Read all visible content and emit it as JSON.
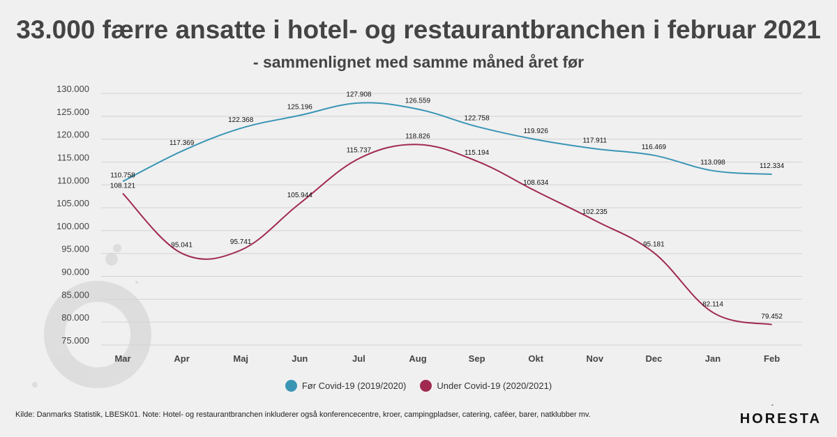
{
  "title": "33.000 færre ansatte i hotel- og restaurantbranchen i februar 2021",
  "subtitle": "- sammenlignet med samme måned året før",
  "source": "Kilde: Danmarks Statistik, LBESK01. Note: Hotel- og restaurantbranchen inkluderer også konferencecentre, kroer, campingpladser, catering, caféer, barer, natklubber mv.",
  "logo": "HORESTA",
  "chart_data": {
    "type": "line",
    "categories": [
      "Mar",
      "Apr",
      "Maj",
      "Jun",
      "Jul",
      "Aug",
      "Sep",
      "Okt",
      "Nov",
      "Dec",
      "Jan",
      "Feb"
    ],
    "series": [
      {
        "name": "Før Covid-19 (2019/2020)",
        "color": "#3a95b5",
        "values": [
          110758,
          117369,
          122368,
          125196,
          127908,
          126559,
          122758,
          119926,
          117911,
          116469,
          113098,
          112334
        ],
        "labels": [
          "110.758",
          "117.369",
          "122.368",
          "125.196",
          "127.908",
          "126.559",
          "122.758",
          "119.926",
          "117.911",
          "116.469",
          "113.098",
          "112.334"
        ]
      },
      {
        "name": "Under Covid-19 (2020/2021)",
        "color": "#a0294f",
        "values": [
          108121,
          95041,
          95741,
          105944,
          115737,
          118826,
          115194,
          108634,
          102235,
          95181,
          82114,
          79452
        ],
        "labels": [
          "108.121",
          "95.041",
          "95.741",
          "105.944",
          "115.737",
          "118.826",
          "115.194",
          "108.634",
          "102.235",
          "95.181",
          "82.114",
          "79.452"
        ]
      }
    ],
    "yticks": [
      75000,
      80000,
      85000,
      90000,
      95000,
      100000,
      105000,
      110000,
      115000,
      120000,
      125000,
      130000
    ],
    "ytick_labels": [
      "75.000",
      "80.000",
      "85.000",
      "90.000",
      "95.000",
      "100.000",
      "105.000",
      "110.000",
      "115.000",
      "120.000",
      "125.000",
      "130.000"
    ],
    "ylim": [
      75000,
      130000
    ],
    "grid": true,
    "legend_position": "bottom"
  }
}
